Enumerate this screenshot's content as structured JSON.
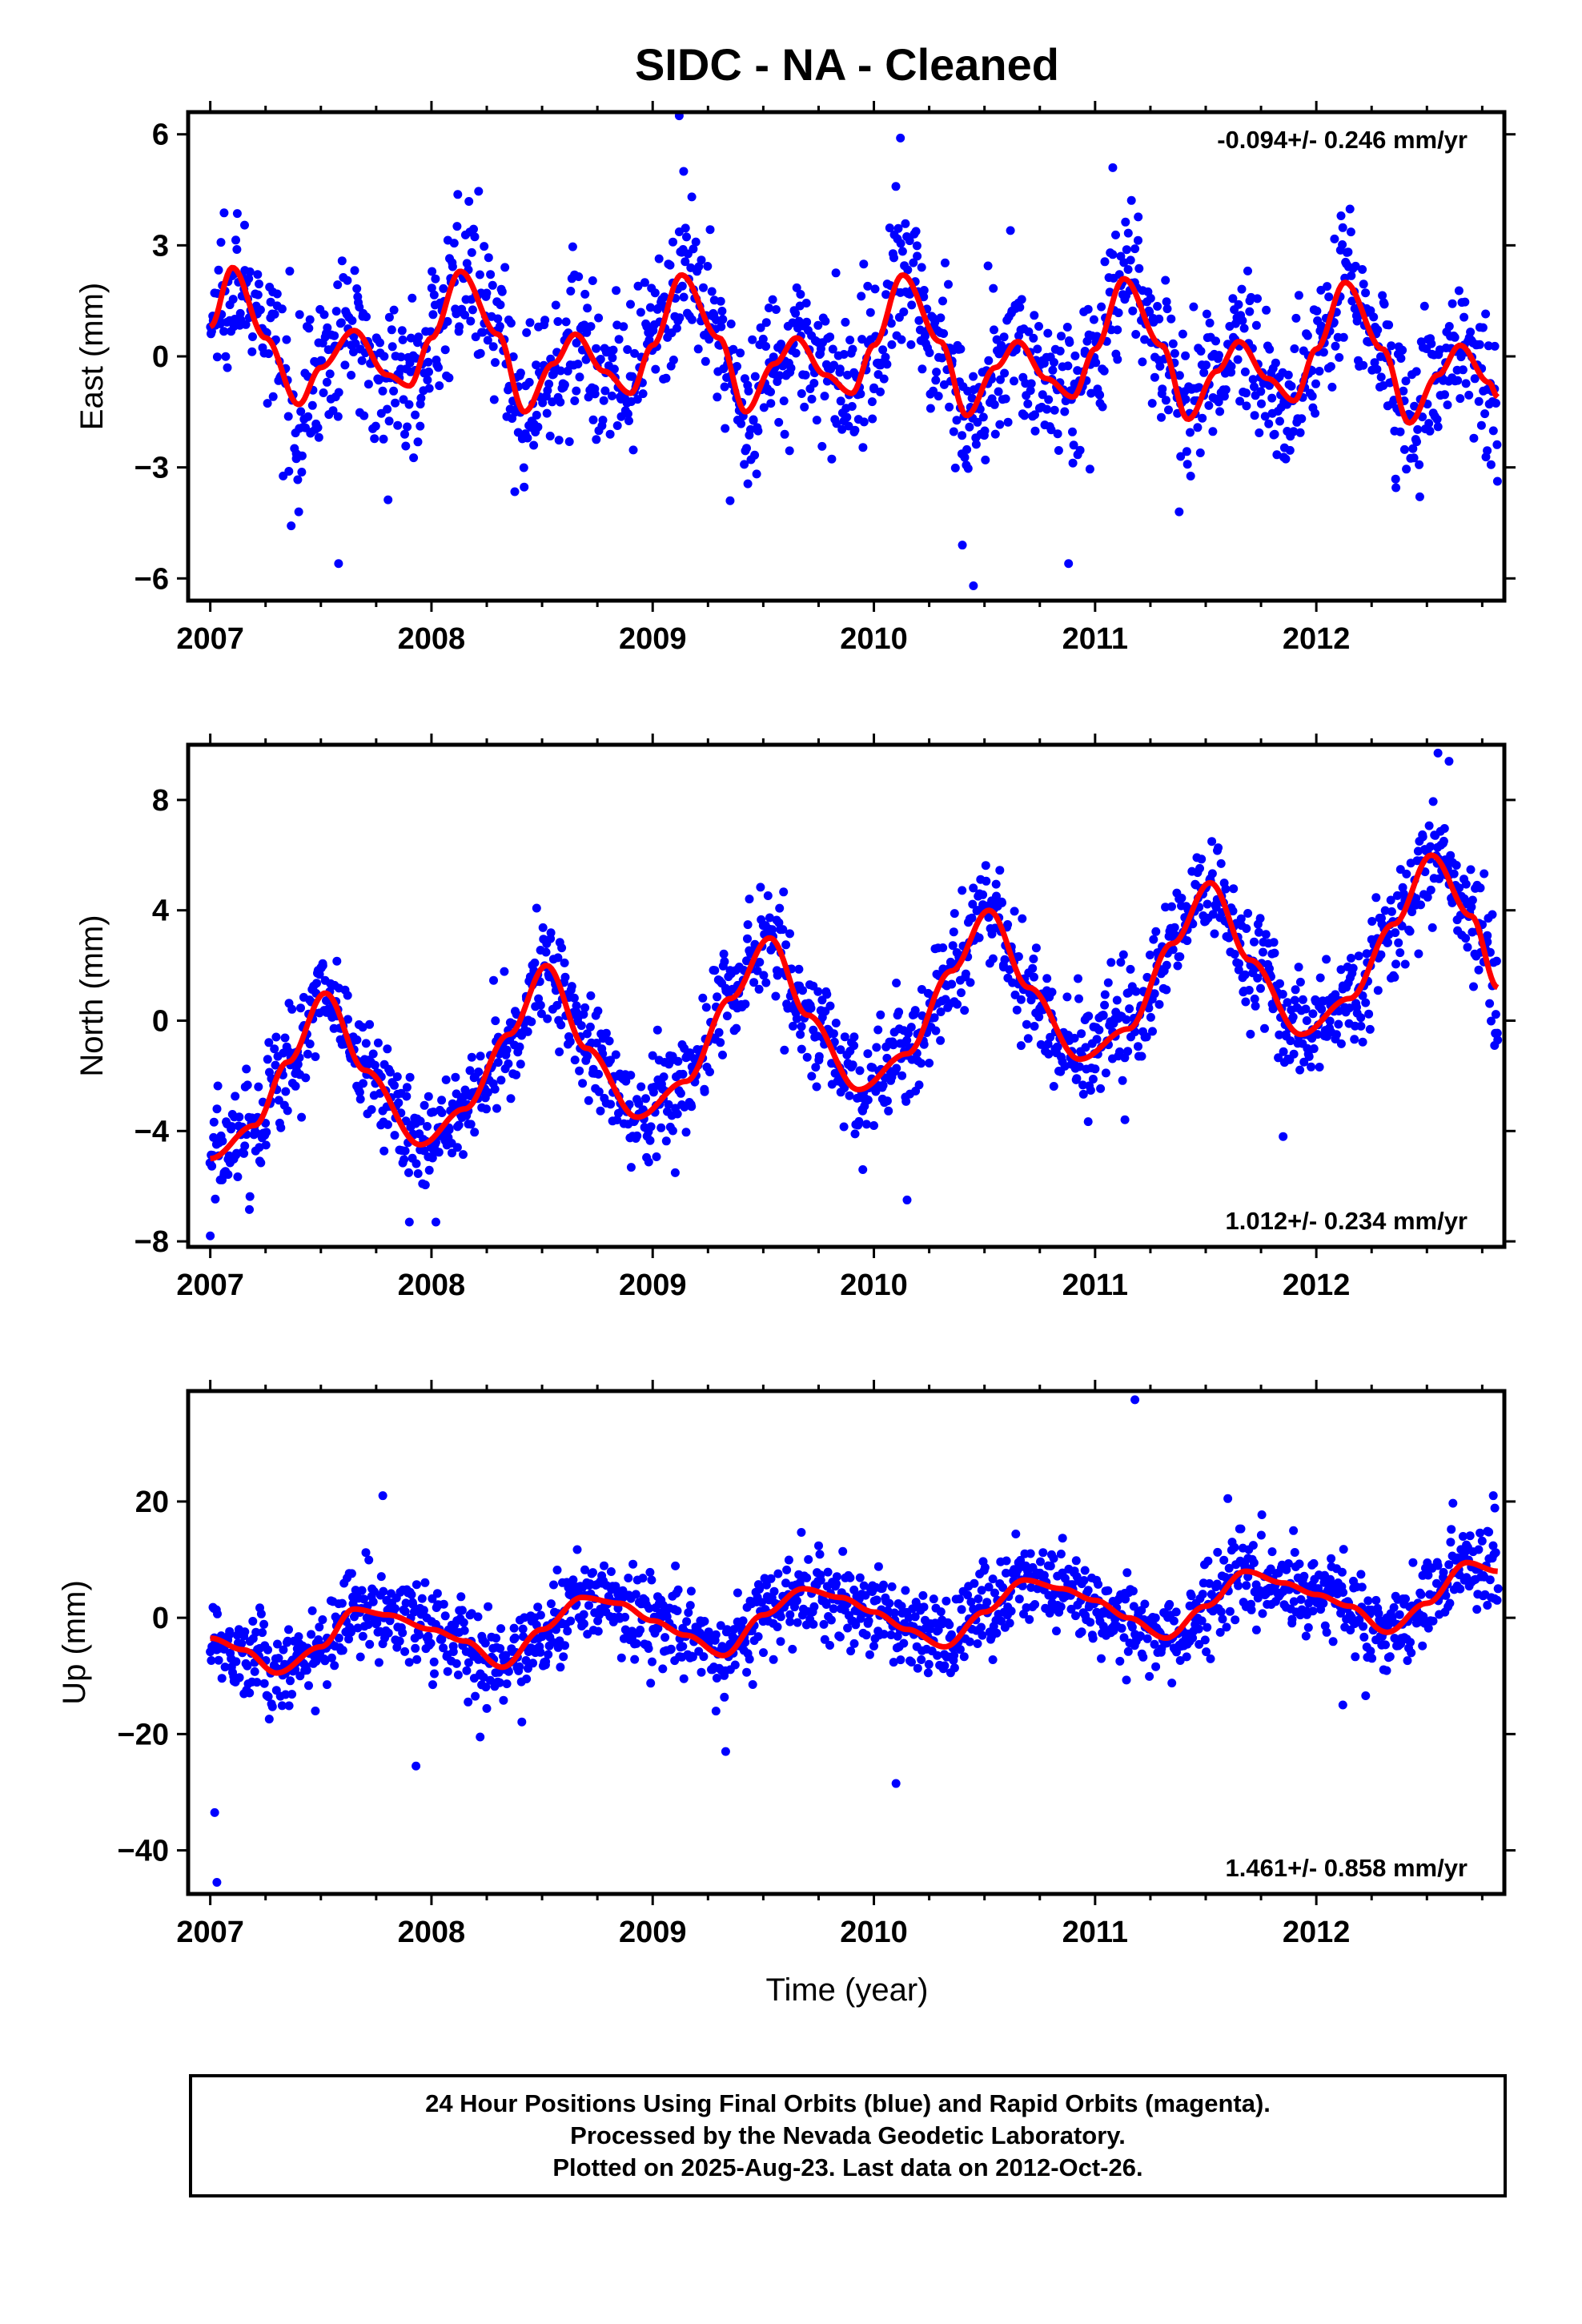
{
  "title": "SIDC  - NA - Cleaned",
  "footer": {
    "lines": [
      "24 Hour Positions Using Final Orbits (blue) and Rapid Orbits (magenta).",
      "Processed by the Nevada Geodetic Laboratory.",
      "Plotted on 2025-Aug-23. Last data on 2012-Oct-26."
    ]
  },
  "colors": {
    "points": "#0000ff",
    "fit": "#ff0000",
    "frame": "#000000"
  },
  "chart_data": [
    {
      "type": "scatter",
      "component": "east",
      "ylabel": "East (mm)",
      "xlabel": "",
      "xlim": [
        2006.9,
        2012.85
      ],
      "ylim": [
        -6.6,
        6.6
      ],
      "xticks": [
        2007,
        2008,
        2009,
        2010,
        2011,
        2012
      ],
      "yticks": [
        -6,
        -3,
        0,
        3,
        6
      ],
      "rate_label": "-0.094+/- 0.246 mm/yr",
      "rate_position": "top-right",
      "fit": {
        "x": [
          2007.0,
          2007.1,
          2007.25,
          2007.4,
          2007.5,
          2007.65,
          2007.8,
          2007.9,
          2008.0,
          2008.13,
          2008.3,
          2008.42,
          2008.55,
          2008.65,
          2008.78,
          2008.9,
          2009.0,
          2009.13,
          2009.3,
          2009.42,
          2009.55,
          2009.65,
          2009.78,
          2009.9,
          2010.0,
          2010.13,
          2010.3,
          2010.42,
          2010.55,
          2010.65,
          2010.78,
          2010.9,
          2011.0,
          2011.13,
          2011.3,
          2011.42,
          2011.55,
          2011.65,
          2011.78,
          2011.9,
          2012.0,
          2012.13,
          2012.3,
          2012.42,
          2012.55,
          2012.65,
          2012.78,
          2012.82
        ],
        "y": [
          0.8,
          2.4,
          0.5,
          -1.3,
          -0.3,
          0.7,
          -0.5,
          -0.8,
          0.5,
          2.3,
          0.6,
          -1.5,
          -0.2,
          0.6,
          -0.4,
          -1.0,
          0.3,
          2.2,
          0.5,
          -1.5,
          -0.2,
          0.5,
          -0.5,
          -1.0,
          0.3,
          2.2,
          0.4,
          -1.6,
          -0.3,
          0.4,
          -0.6,
          -1.1,
          0.2,
          2.1,
          0.3,
          -1.7,
          -0.4,
          0.4,
          -0.6,
          -1.2,
          0.2,
          2.0,
          0.2,
          -1.8,
          -0.5,
          0.3,
          -0.7,
          -1.1
        ]
      },
      "scatter": {
        "count": 1550,
        "x_start": 2007.0,
        "x_end": 2012.82,
        "scatter_sd": 1.0,
        "outliers": [
          {
            "x": 2007.4,
            "y": -4.2
          },
          {
            "x": 2007.58,
            "y": -5.6
          },
          {
            "x": 2009.12,
            "y": 6.5
          },
          {
            "x": 2009.14,
            "y": 5.0
          },
          {
            "x": 2009.35,
            "y": -3.9
          },
          {
            "x": 2010.12,
            "y": 5.9
          },
          {
            "x": 2010.45,
            "y": -6.2
          },
          {
            "x": 2010.4,
            "y": -5.1
          },
          {
            "x": 2010.88,
            "y": -5.6
          },
          {
            "x": 2011.08,
            "y": 5.1
          },
          {
            "x": 2011.38,
            "y": -4.2
          }
        ]
      }
    },
    {
      "type": "scatter",
      "component": "north",
      "ylabel": "North (mm)",
      "xlabel": "",
      "xlim": [
        2006.9,
        2012.85
      ],
      "ylim": [
        -8.2,
        10.0
      ],
      "xticks": [
        2007,
        2008,
        2009,
        2010,
        2011,
        2012
      ],
      "yticks": [
        -8,
        -4,
        0,
        4,
        8
      ],
      "rate_label": "1.012+/- 0.234 mm/yr",
      "rate_position": "bottom-right",
      "fit": {
        "x": [
          2007.0,
          2007.2,
          2007.35,
          2007.52,
          2007.7,
          2007.95,
          2008.15,
          2008.35,
          2008.52,
          2008.7,
          2008.93,
          2009.15,
          2009.35,
          2009.53,
          2009.7,
          2009.93,
          2010.15,
          2010.35,
          2010.52,
          2010.7,
          2010.93,
          2011.15,
          2011.35,
          2011.52,
          2011.7,
          2011.93,
          2012.15,
          2012.35,
          2012.52,
          2012.7,
          2012.82
        ],
        "y": [
          -5.0,
          -3.8,
          -1.5,
          1.0,
          -1.8,
          -4.5,
          -3.2,
          -0.5,
          2.0,
          -1.0,
          -3.5,
          -2.2,
          0.8,
          3.0,
          0.2,
          -2.5,
          -1.2,
          1.8,
          4.0,
          1.2,
          -1.4,
          -0.3,
          2.8,
          5.0,
          2.2,
          -0.5,
          0.8,
          3.5,
          6.0,
          3.8,
          1.2
        ]
      },
      "scatter": {
        "count": 1550,
        "x_start": 2007.0,
        "x_end": 2012.82,
        "scatter_sd": 1.0,
        "outliers": [
          {
            "x": 2007.0,
            "y": -7.8
          },
          {
            "x": 2007.9,
            "y": -7.3
          },
          {
            "x": 2008.02,
            "y": -7.3
          },
          {
            "x": 2010.15,
            "y": -6.5
          },
          {
            "x": 2009.95,
            "y": -5.4
          },
          {
            "x": 2012.55,
            "y": 9.7
          },
          {
            "x": 2012.6,
            "y": 9.4
          },
          {
            "x": 2012.82,
            "y": -0.7
          },
          {
            "x": 2011.85,
            "y": -4.2
          }
        ]
      }
    },
    {
      "type": "scatter",
      "component": "up",
      "ylabel": "Up (mm)",
      "xlabel": "Time (year)",
      "xlim": [
        2006.9,
        2012.85
      ],
      "ylim": [
        -47.5,
        39.0
      ],
      "xticks": [
        2007,
        2008,
        2009,
        2010,
        2011,
        2012
      ],
      "yticks": [
        -40,
        -20,
        0,
        20
      ],
      "rate_label": "1.461+/- 0.858 mm/yr",
      "rate_position": "bottom-right",
      "fit": {
        "x": [
          2007.0,
          2007.15,
          2007.3,
          2007.5,
          2007.65,
          2007.8,
          2008.0,
          2008.15,
          2008.32,
          2008.5,
          2008.68,
          2008.85,
          2009.0,
          2009.15,
          2009.32,
          2009.5,
          2009.68,
          2009.85,
          2010.0,
          2010.15,
          2010.32,
          2010.5,
          2010.68,
          2010.85,
          2011.0,
          2011.15,
          2011.32,
          2011.5,
          2011.68,
          2011.85,
          2012.0,
          2012.15,
          2012.32,
          2012.5,
          2012.68,
          2012.82
        ],
        "y": [
          -3.5,
          -5.5,
          -9.5,
          -5.0,
          1.5,
          0.5,
          -2.0,
          -4.0,
          -8.5,
          -2.0,
          3.5,
          2.5,
          -0.5,
          -3.0,
          -6.5,
          0.5,
          5.0,
          3.5,
          1.0,
          -2.0,
          -5.0,
          1.0,
          6.5,
          5.0,
          3.0,
          0.0,
          -3.5,
          2.0,
          8.0,
          6.0,
          4.0,
          2.0,
          -2.5,
          2.5,
          9.5,
          8.0
        ]
      },
      "scatter": {
        "count": 1550,
        "x_start": 2007.0,
        "x_end": 2012.82,
        "scatter_sd": 3.8,
        "outliers": [
          {
            "x": 2007.02,
            "y": -33.5
          },
          {
            "x": 2007.03,
            "y": -45.5
          },
          {
            "x": 2007.78,
            "y": 21.0
          },
          {
            "x": 2007.93,
            "y": -25.5
          },
          {
            "x": 2008.22,
            "y": -20.5
          },
          {
            "x": 2009.33,
            "y": -23.0
          },
          {
            "x": 2010.1,
            "y": -28.5
          },
          {
            "x": 2011.18,
            "y": 37.5
          },
          {
            "x": 2011.6,
            "y": 20.5
          },
          {
            "x": 2012.12,
            "y": -15.0
          },
          {
            "x": 2012.8,
            "y": 21.0
          }
        ]
      }
    }
  ]
}
